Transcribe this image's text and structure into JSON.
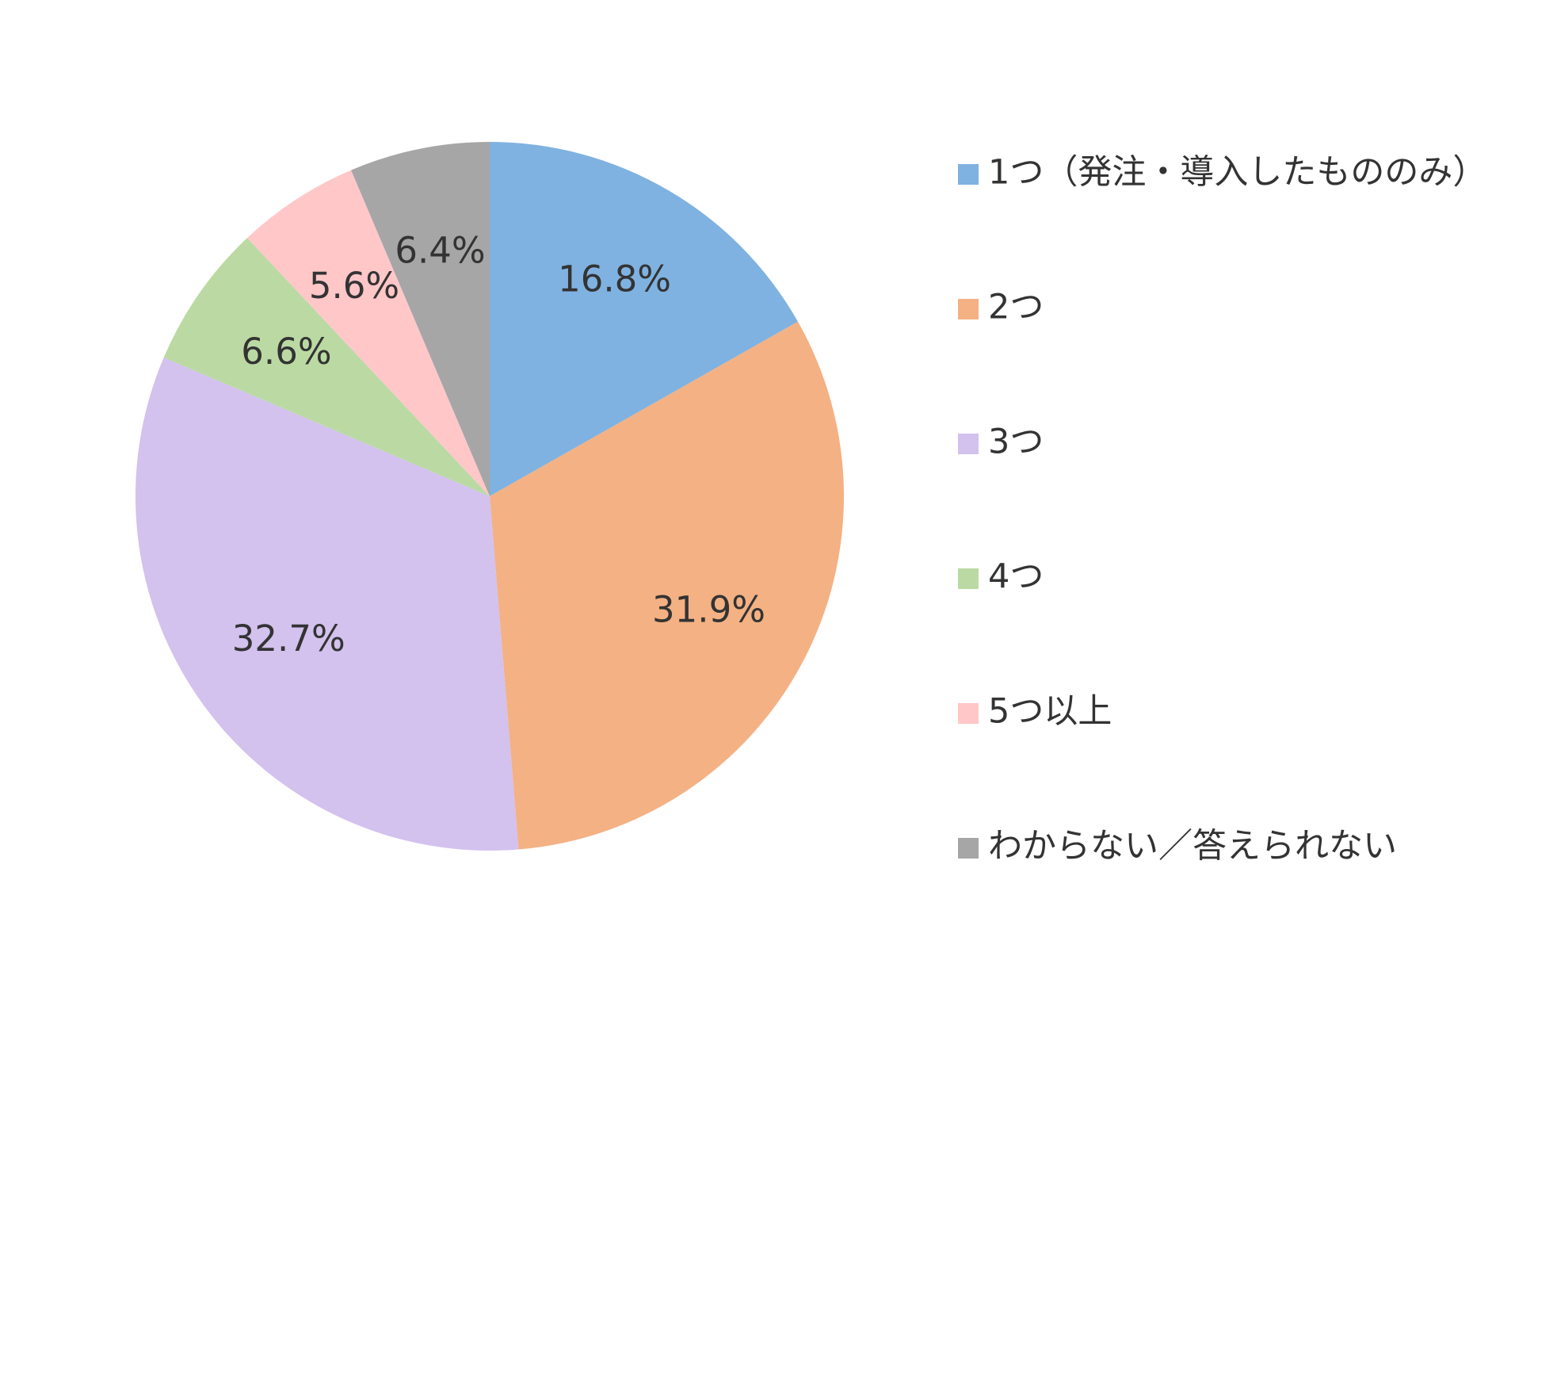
{
  "chart_data": {
    "type": "pie",
    "categories": [
      "1つ（発注・導入したもののみ）",
      "2つ",
      "3つ",
      "4つ",
      "5つ以上",
      "わからない／答えられない"
    ],
    "values": [
      16.8,
      31.9,
      32.7,
      6.6,
      5.6,
      6.4
    ],
    "value_labels": [
      "16.8%",
      "31.9%",
      "32.7%",
      "6.6%",
      "5.6%",
      "6.4%"
    ],
    "colors": [
      "#7fb2e0",
      "#f4b183",
      "#d3c1ee",
      "#bbdaa3",
      "#ffc7c8",
      "#a6a6a6"
    ],
    "legend": "right"
  }
}
